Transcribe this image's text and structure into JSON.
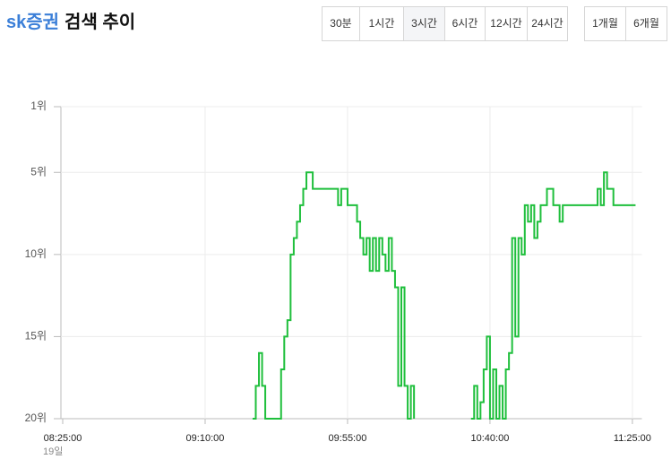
{
  "header": {
    "keyword": "sk증권",
    "title": "검색 추이"
  },
  "buttons": [
    {
      "items": [
        "30분",
        "1시간",
        "3시간",
        "6시간",
        "12시간",
        "24시간"
      ],
      "selected": 2
    },
    {
      "items": [
        "1개월",
        "6개월"
      ]
    }
  ],
  "chart_data": {
    "type": "step",
    "color": "#1fbf3c",
    "grid": true,
    "date_label": "19일",
    "x": [
      "09:25",
      "09:26",
      "09:27",
      "09:28",
      "09:29",
      "09:33",
      "09:34",
      "09:35",
      "09:36",
      "09:37",
      "09:38",
      "09:39",
      "09:40",
      "09:41",
      "09:42",
      "09:44",
      "09:52",
      "09:53",
      "09:55",
      "09:58",
      "09:59",
      "10:00",
      "10:01",
      "10:02",
      "10:03",
      "10:04",
      "10:05",
      "10:06",
      "10:07",
      "10:08",
      "10:09",
      "10:10",
      "10:11",
      "10:12",
      "10:13",
      "10:14",
      "10:15",
      "10:16",
      "10:17",
      "10:34",
      "10:35",
      "10:36",
      "10:37",
      "10:38",
      "10:39",
      "10:40",
      "10:41",
      "10:42",
      "10:43",
      "10:44",
      "10:45",
      "10:46",
      "10:47",
      "10:48",
      "10:49",
      "10:50",
      "10:51",
      "10:52",
      "10:53",
      "10:54",
      "10:55",
      "10:56",
      "10:58",
      "11:00",
      "11:02",
      "11:03",
      "11:14",
      "11:15",
      "11:16",
      "11:17",
      "11:19",
      "11:26"
    ],
    "values": [
      20,
      18,
      16,
      18,
      20,
      20,
      17,
      15,
      14,
      10,
      9,
      8,
      7,
      6,
      5,
      6,
      7,
      6,
      7,
      8,
      9,
      10,
      9,
      11,
      9,
      11,
      9,
      10,
      11,
      9,
      11,
      12,
      18,
      12,
      18,
      20,
      18,
      20,
      null,
      20,
      18,
      20,
      19,
      17,
      15,
      20,
      17,
      20,
      18,
      20,
      17,
      16,
      9,
      15,
      9,
      10,
      7,
      8,
      7,
      9,
      8,
      7,
      6,
      7,
      8,
      7,
      6,
      7,
      5,
      6,
      7,
      7
    ],
    "xlim": [
      "08:25:00",
      "11:28:00"
    ],
    "xticks": [
      "08:25:00",
      "09:10:00",
      "09:55:00",
      "10:40:00",
      "11:25:00"
    ],
    "ylim": [
      20,
      1
    ],
    "yticks": [
      {
        "value": 1,
        "label": "1위"
      },
      {
        "value": 5,
        "label": "5위"
      },
      {
        "value": 10,
        "label": "10위"
      },
      {
        "value": 15,
        "label": "15위"
      },
      {
        "value": 20,
        "label": "20위"
      }
    ]
  }
}
